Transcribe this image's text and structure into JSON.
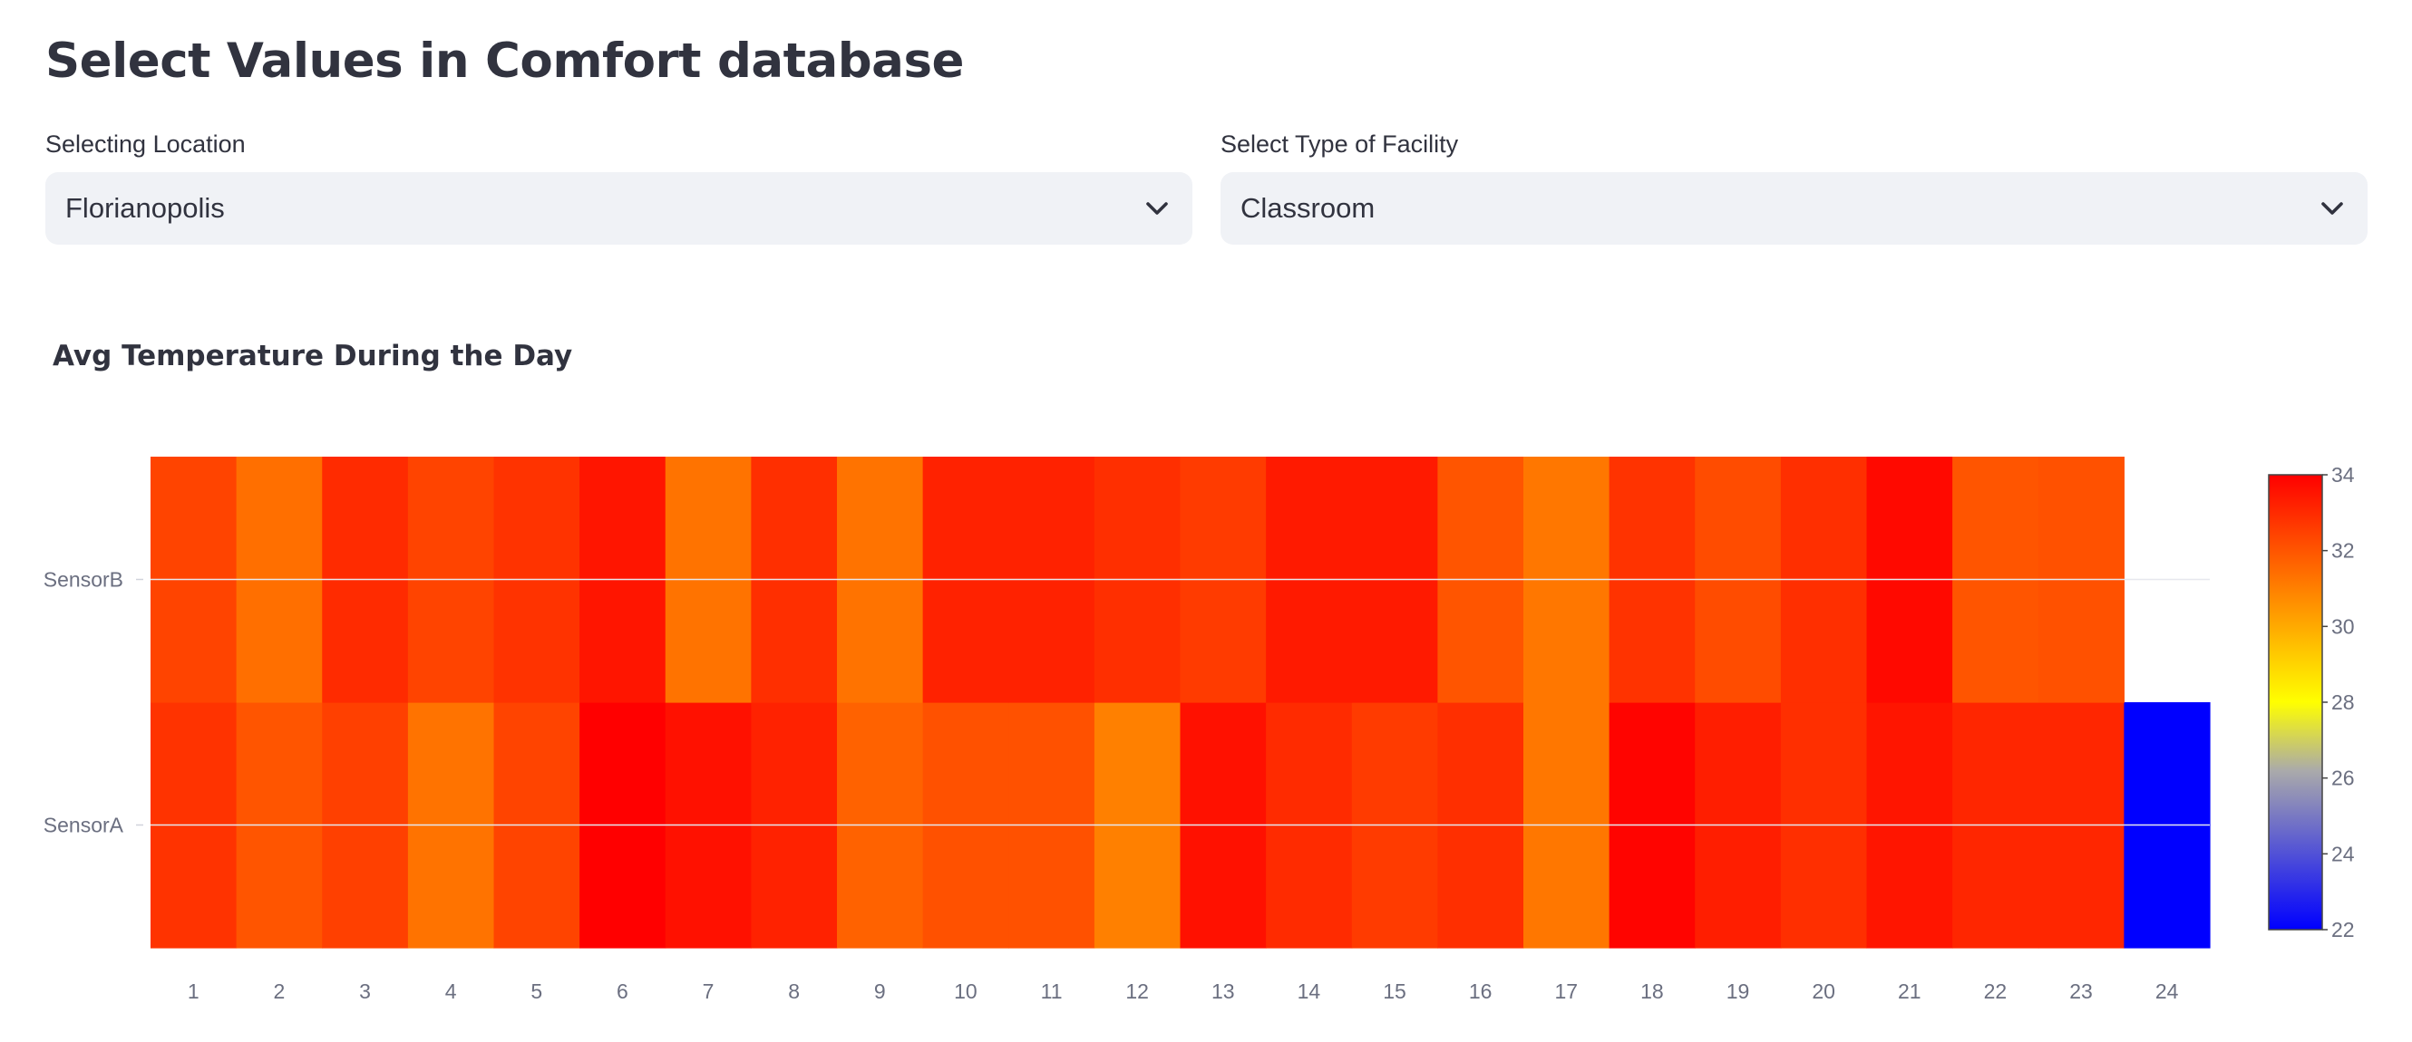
{
  "header": {
    "title": "Select Values in Comfort database"
  },
  "filters": {
    "location": {
      "label": "Selecting Location",
      "value": "Florianopolis"
    },
    "facility": {
      "label": "Select Type of Facility",
      "value": "Classroom"
    }
  },
  "icons": {
    "dropdown": "chevron-down-icon"
  },
  "chart_data": {
    "type": "heatmap",
    "title": "Avg Temperature During the Day",
    "xlabel": "",
    "ylabel": "",
    "x": [
      1,
      2,
      3,
      4,
      5,
      6,
      7,
      8,
      9,
      10,
      11,
      12,
      13,
      14,
      15,
      16,
      17,
      18,
      19,
      20,
      21,
      22,
      23,
      24
    ],
    "y": [
      "SensorA",
      "SensorB"
    ],
    "z": [
      [
        32.8,
        32.0,
        32.5,
        31.3,
        32.4,
        34.0,
        33.6,
        33.2,
        31.7,
        32.1,
        32.1,
        31.0,
        33.6,
        33.0,
        32.6,
        32.9,
        31.2,
        33.9,
        33.3,
        32.9,
        33.5,
        33.1,
        33.1,
        22.0
      ],
      [
        32.4,
        31.4,
        33.0,
        32.4,
        32.8,
        33.5,
        31.3,
        32.9,
        31.3,
        33.2,
        33.2,
        32.9,
        32.6,
        33.4,
        33.4,
        32.0,
        31.2,
        32.8,
        32.2,
        32.9,
        33.8,
        32.0,
        32.1,
        null
      ]
    ],
    "colorscale": [
      [
        0.0,
        "#0000ff"
      ],
      [
        0.35,
        "#aaaaaa"
      ],
      [
        0.5,
        "#ffff00"
      ],
      [
        1.0,
        "#ff0000"
      ]
    ],
    "zrange": [
      22,
      34
    ],
    "colorbar_ticks": [
      22,
      24,
      26,
      28,
      30,
      32,
      34
    ],
    "grid": false
  }
}
